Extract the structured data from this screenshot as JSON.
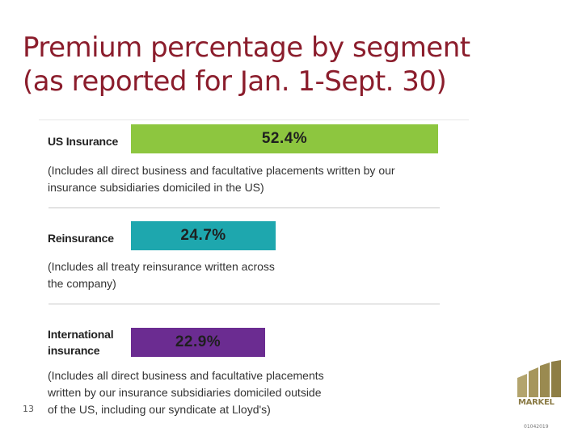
{
  "title_line1": "Premium percentage by segment",
  "title_line2": "(as reported for Jan. 1-Sept. 30)",
  "page_number": "13",
  "logo_text": "MARKEL",
  "doc_code": "01042019",
  "chart_data": {
    "type": "bar",
    "orientation": "horizontal",
    "title": "Premium percentage by segment (as reported for Jan. 1-Sept. 30)",
    "unit": "%",
    "xlim": [
      0,
      52.4
    ],
    "categories": [
      "US Insurance",
      "Reinsurance",
      "International insurance"
    ],
    "values": [
      52.4,
      24.7,
      22.9
    ],
    "value_labels": [
      "52.4%",
      "24.7%",
      "22.9%"
    ],
    "segments": [
      {
        "label_lines": [
          "US Insurance"
        ],
        "value": 52.4,
        "value_label": "52.4%",
        "color": "#8dc63f",
        "description_lines": [
          "(Includes all direct business and facultative placements written by our",
          "insurance subsidiaries domiciled in the US)"
        ]
      },
      {
        "label_lines": [
          "Reinsurance"
        ],
        "value": 24.7,
        "value_label": "24.7%",
        "color": "#1ea7ae",
        "description_lines": [
          "(Includes all treaty reinsurance written across",
          "the company)"
        ]
      },
      {
        "label_lines": [
          "International",
          "insurance"
        ],
        "value": 22.9,
        "value_label": "22.9%",
        "color": "#6b2c91",
        "description_lines": [
          "(Includes all direct business and facultative placements",
          "written by our insurance subsidiaries domiciled outside",
          "of the US, including our syndicate at Lloyd's)"
        ]
      }
    ]
  }
}
